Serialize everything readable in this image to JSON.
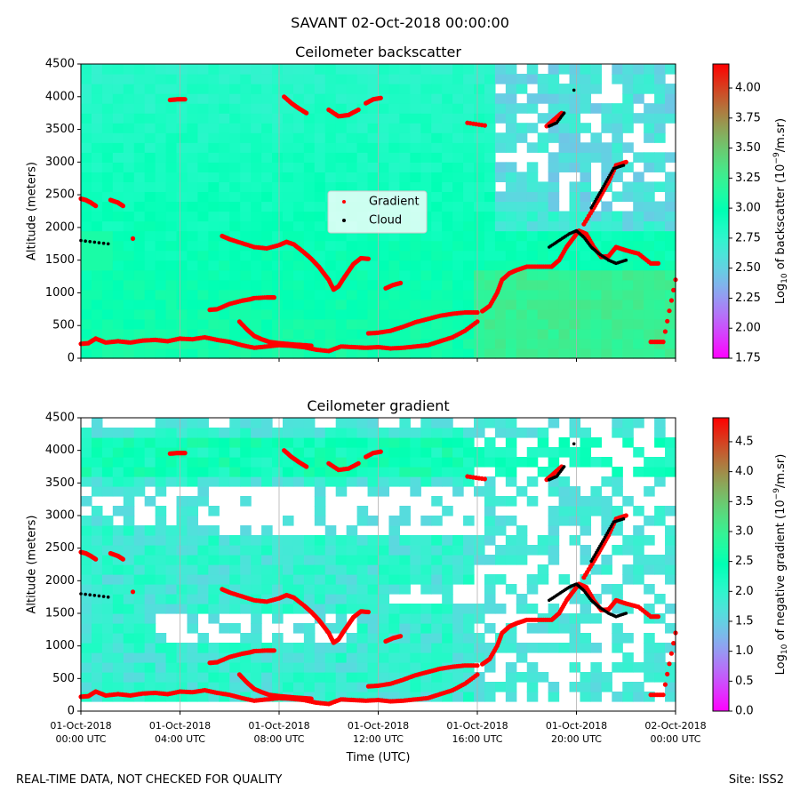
{
  "figure": {
    "suptitle": "SAVANT 02-Oct-2018 00:00:00",
    "footer_left": "REAL-TIME DATA, NOT CHECKED FOR QUALITY",
    "footer_right": "Site: ISS2",
    "xlabel": "Time (UTC)"
  },
  "chart_data": [
    {
      "type": "heatmap",
      "title": "Ceilometer backscatter",
      "ylabel": "Altitude (meters)",
      "xlabel": "",
      "x_ticks": [
        [
          "01-Oct-2018",
          "00:00 UTC"
        ],
        [
          "01-Oct-2018",
          "04:00 UTC"
        ],
        [
          "01-Oct-2018",
          "08:00 UTC"
        ],
        [
          "01-Oct-2018",
          "12:00 UTC"
        ],
        [
          "01-Oct-2018",
          "16:00 UTC"
        ],
        [
          "01-Oct-2018",
          "20:00 UTC"
        ],
        [
          "02-Oct-2018",
          "00:00 UTC"
        ]
      ],
      "x_tick_labels_visible": false,
      "xlim_hours": [
        0,
        24
      ],
      "ylim": [
        0,
        4500
      ],
      "y_ticks": [
        0,
        500,
        1000,
        1500,
        2000,
        2500,
        3000,
        3500,
        4000,
        4500
      ],
      "grid_x": true,
      "colorbar": {
        "label_main": "Log",
        "label_sub": "10",
        "label_rest": " of backscatter (10",
        "label_sup": "−9",
        "label_end": "/m.sr)",
        "range": [
          1.75,
          4.2
        ],
        "ticks": [
          "1.75",
          "2.00",
          "2.25",
          "2.50",
          "2.75",
          "3.00",
          "3.25",
          "3.50",
          "3.75",
          "4.00"
        ],
        "colormap": "rainbow"
      },
      "legend": {
        "position": "center",
        "entries": [
          {
            "label": "Gradient",
            "color": "#ff0000"
          },
          {
            "label": "Cloud",
            "color": "#000000"
          }
        ]
      },
      "series": [
        {
          "name": "Gradient",
          "color": "#ff0000",
          "segments": [
            {
              "x": [
                0,
                0.3,
                0.6,
                1,
                1.5,
                2,
                2.5,
                3,
                3.5,
                4,
                4.5,
                5,
                5.5,
                6,
                6.5,
                7,
                7.5,
                8,
                8.5,
                9,
                9.5,
                10,
                10.5,
                11,
                11.5,
                12,
                12.5,
                13,
                13.5,
                14,
                14.5,
                15,
                15.5,
                16
              ],
              "y": [
                220,
                230,
                300,
                240,
                260,
                240,
                270,
                280,
                260,
                300,
                290,
                320,
                280,
                250,
                200,
                160,
                180,
                200,
                190,
                170,
                130,
                110,
                180,
                170,
                160,
                170,
                150,
                160,
                180,
                200,
                260,
                320,
                420,
                560
              ]
            },
            {
              "x": [
                0,
                0.2,
                0.4,
                0.6
              ],
              "y": [
                2440,
                2420,
                2380,
                2330
              ]
            },
            {
              "x": [
                1.2,
                1.5,
                1.7
              ],
              "y": [
                2420,
                2380,
                2330
              ]
            },
            {
              "x": [
                2.1
              ],
              "y": [
                1830
              ]
            },
            {
              "x": [
                5.7,
                6,
                6.5,
                7,
                7.5,
                8,
                8.3,
                8.6,
                9,
                9.3,
                9.6,
                9.8,
                10,
                10.2,
                10.4,
                10.6,
                10.8,
                11,
                11.3,
                11.6
              ],
              "y": [
                1870,
                1820,
                1760,
                1700,
                1680,
                1730,
                1780,
                1740,
                1620,
                1520,
                1400,
                1300,
                1200,
                1050,
                1100,
                1220,
                1330,
                1440,
                1530,
                1520
              ]
            },
            {
              "x": [
                5.2,
                5.5,
                6,
                6.5,
                6.8,
                7,
                7.5,
                7.8
              ],
              "y": [
                740,
                750,
                830,
                880,
                900,
                920,
                930,
                930
              ]
            },
            {
              "x": [
                6.4,
                6.7,
                7,
                7.3,
                7.6,
                8,
                8.3,
                8.6,
                9,
                9.3
              ],
              "y": [
                560,
                440,
                340,
                290,
                250,
                230,
                220,
                210,
                200,
                190
              ]
            },
            {
              "x": [
                11.6,
                12,
                12.5,
                13,
                13.5,
                14,
                14.5,
                15,
                15.5,
                16
              ],
              "y": [
                380,
                390,
                420,
                480,
                550,
                600,
                650,
                680,
                700,
                700
              ]
            },
            {
              "x": [
                12.3,
                12.6,
                12.9
              ],
              "y": [
                1070,
                1120,
                1150
              ]
            },
            {
              "x": [
                16.2,
                16.5,
                16.8,
                17,
                17.3,
                17.6,
                18,
                18.5,
                19,
                19.3,
                19.6,
                19.8,
                20.1,
                20.4,
                20.7,
                21,
                21.3,
                21.6,
                22,
                22.5,
                23,
                23.3
              ],
              "y": [
                720,
                800,
                1000,
                1200,
                1300,
                1350,
                1400,
                1400,
                1400,
                1500,
                1700,
                1800,
                1950,
                1900,
                1700,
                1550,
                1560,
                1700,
                1650,
                1600,
                1450,
                1450
              ]
            },
            {
              "x": [
                3.6,
                3.9,
                4.2
              ],
              "y": [
                3950,
                3960,
                3960
              ]
            },
            {
              "x": [
                8.2,
                8.5,
                8.8,
                9.1
              ],
              "y": [
                4000,
                3900,
                3820,
                3750
              ]
            },
            {
              "x": [
                10,
                10.4,
                10.8,
                11.2
              ],
              "y": [
                3800,
                3700,
                3720,
                3800
              ]
            },
            {
              "x": [
                11.5,
                11.8,
                12.1
              ],
              "y": [
                3900,
                3960,
                3980
              ]
            },
            {
              "x": [
                15.6,
                16.3
              ],
              "y": [
                3600,
                3560
              ]
            },
            {
              "x": [
                18.8,
                19.1,
                19.4
              ],
              "y": [
                3550,
                3650,
                3750
              ]
            },
            {
              "x": [
                20.3,
                20.7,
                21,
                21.3,
                21.6,
                22
              ],
              "y": [
                2050,
                2300,
                2500,
                2700,
                2950,
                3000
              ]
            },
            {
              "x": [
                23,
                23.5,
                24
              ],
              "y": [
                250,
                250,
                1200
              ]
            }
          ]
        },
        {
          "name": "Cloud",
          "color": "#000000",
          "segments": [
            {
              "x": [
                0,
                1.1
              ],
              "y": [
                1800,
                1750
              ]
            },
            {
              "x": [
                18.9,
                19.3,
                19.7,
                20,
                20.3,
                20.6,
                20.9,
                21.3,
                21.6,
                22
              ],
              "y": [
                1700,
                1800,
                1900,
                1950,
                1850,
                1700,
                1600,
                1500,
                1450,
                1500
              ]
            },
            {
              "x": [
                18.9,
                19.2,
                19.5
              ],
              "y": [
                3550,
                3600,
                3750
              ]
            },
            {
              "x": [
                20.6,
                20.9,
                21.2,
                21.5,
                21.9
              ],
              "y": [
                2300,
                2500,
                2700,
                2900,
                2950
              ]
            },
            {
              "x": [
                19.9
              ],
              "y": [
                4100
              ]
            }
          ]
        }
      ]
    },
    {
      "type": "heatmap",
      "title": "Ceilometer gradient",
      "ylabel": "Altitude (meters)",
      "xlabel": "Time (UTC)",
      "x_ticks": [
        [
          "01-Oct-2018",
          "00:00 UTC"
        ],
        [
          "01-Oct-2018",
          "04:00 UTC"
        ],
        [
          "01-Oct-2018",
          "08:00 UTC"
        ],
        [
          "01-Oct-2018",
          "12:00 UTC"
        ],
        [
          "01-Oct-2018",
          "16:00 UTC"
        ],
        [
          "01-Oct-2018",
          "20:00 UTC"
        ],
        [
          "02-Oct-2018",
          "00:00 UTC"
        ]
      ],
      "x_tick_labels_visible": true,
      "xlim_hours": [
        0,
        24
      ],
      "ylim": [
        0,
        4500
      ],
      "y_ticks": [
        0,
        500,
        1000,
        1500,
        2000,
        2500,
        3000,
        3500,
        4000,
        4500
      ],
      "grid_x": true,
      "colorbar": {
        "label_main": "Log",
        "label_sub": "10",
        "label_rest": " of negative gradient (10",
        "label_sup": "−9",
        "label_end": "/m.sr)",
        "range": [
          0.0,
          4.9
        ],
        "ticks": [
          "0.0",
          "0.5",
          "1.0",
          "1.5",
          "2.0",
          "2.5",
          "3.0",
          "3.5",
          "4.0",
          "4.5"
        ],
        "colormap": "rainbow"
      },
      "series": "same_as_backscatter"
    }
  ]
}
